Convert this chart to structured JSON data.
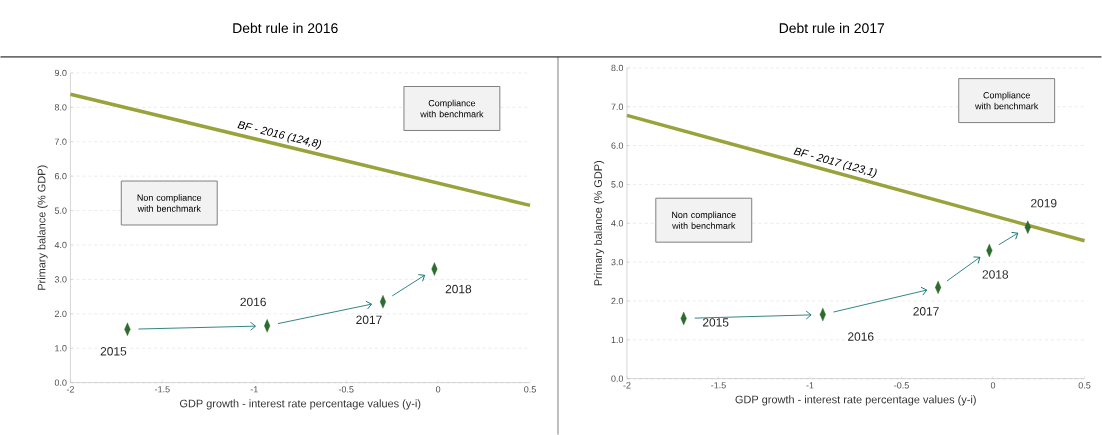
{
  "chart_data": [
    {
      "type": "scatter",
      "title": "Debt rule in 2016",
      "xlabel": "GDP growth  - interest rate percentage values (y-i)",
      "ylabel": "Primary balance (% GDP)",
      "series": [
        {
          "type": "line",
          "name": "BF - 2016 (124,8)",
          "color": "#9aa23c",
          "x": [
            -2,
            0.5
          ],
          "values": [
            8.38,
            5.15
          ],
          "marker": "none"
        },
        {
          "type": "scatter",
          "color": "#2e6b2e",
          "x": [
            -1.69,
            -0.93,
            -0.3,
            -0.02
          ],
          "values": [
            1.55,
            1.65,
            2.35,
            3.3
          ]
        }
      ],
      "xlim": [
        -2,
        0.5
      ],
      "ylim": [
        0,
        9
      ],
      "xticks": [
        -2,
        -1.5,
        -1,
        -0.5,
        0,
        0.5
      ],
      "yticks": [
        {
          "value": 0,
          "label": "0.0"
        },
        {
          "value": 1,
          "label": "1.0"
        },
        {
          "value": 2,
          "label": "2.0"
        },
        {
          "value": 3,
          "label": "3.0"
        },
        {
          "value": 4,
          "label": "4.0"
        },
        {
          "value": 5,
          "label": "5.0"
        },
        {
          "value": 6,
          "label": "6.0"
        },
        {
          "value": 7,
          "label": "7.0"
        },
        {
          "value": 8,
          "label": "8.0"
        },
        {
          "value": 9,
          "label": "9.0"
        }
      ],
      "grid": "y",
      "marker": "diamond",
      "annotations": [
        "Compliance with benchmark",
        "Non compliance with benchmark",
        "2015",
        "2016",
        "2017",
        "2018"
      ]
    },
    {
      "type": "scatter",
      "title": "Debt rule in 2017",
      "xlabel": "GDP growth - interest rate percentage values (y-i)",
      "ylabel": "Primary balance (% GDP)",
      "series": [
        {
          "type": "line",
          "name": "BF - 2017 (123,1)",
          "color": "#9aa23c",
          "x": [
            -2,
            0.5
          ],
          "values": [
            6.78,
            3.55
          ],
          "marker": "none"
        },
        {
          "type": "scatter",
          "color": "#2e6b2e",
          "x": [
            -1.69,
            -0.93,
            -0.3,
            -0.02,
            0.19
          ],
          "values": [
            1.55,
            1.65,
            2.35,
            3.3,
            3.9
          ]
        }
      ],
      "xlim": [
        -2,
        0.5
      ],
      "ylim": [
        0,
        8
      ],
      "xticks": [
        -2,
        -1.5,
        -1,
        -0.5,
        0,
        0.5
      ],
      "yticks": [
        {
          "value": 0,
          "label": "0.0"
        },
        {
          "value": 1,
          "label": "1.0"
        },
        {
          "value": 2,
          "label": "2.0"
        },
        {
          "value": 3,
          "label": "3.0"
        },
        {
          "value": 4,
          "label": "4.0"
        },
        {
          "value": 5,
          "label": "5.0"
        },
        {
          "value": 6,
          "label": "6.0"
        },
        {
          "value": 7,
          "label": "7.0"
        },
        {
          "value": 8,
          "label": "8.0"
        }
      ],
      "grid": "y",
      "marker": "diamond",
      "annotations": [
        "Compliance with benchmark",
        "Non compliance with benchmark",
        "2015",
        "2016",
        "2017",
        "2018",
        "2019"
      ]
    }
  ]
}
